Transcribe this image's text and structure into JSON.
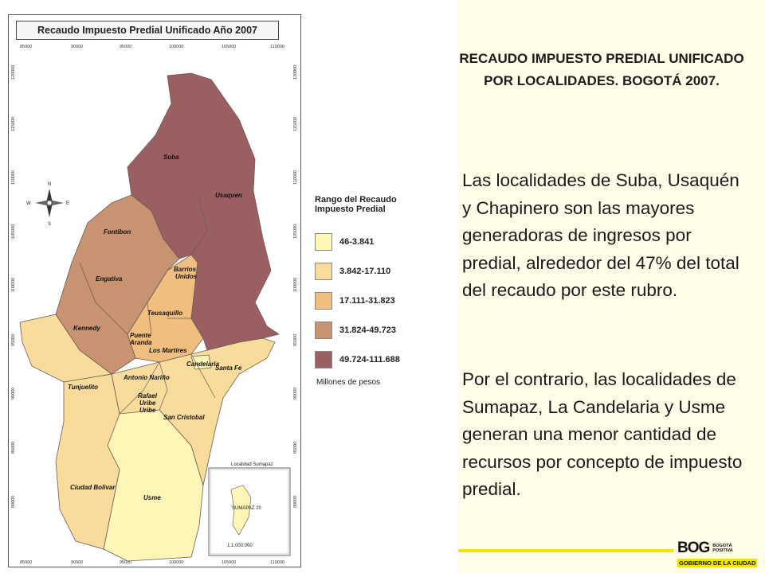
{
  "map": {
    "title": "Recaudo Impuesto Predial Unificado Año 2007",
    "x_ticks": [
      "85000",
      "90000",
      "95000",
      "100000",
      "105000",
      "110000"
    ],
    "y_ticks": [
      "120000",
      "115000",
      "110000",
      "105000",
      "100000",
      "95000",
      "90000",
      "85000",
      "80000"
    ],
    "localities": [
      {
        "name": "Suba",
        "class": 5
      },
      {
        "name": "Usaquen",
        "class": 5
      },
      {
        "name": "Chapinero",
        "class": 5
      },
      {
        "name": "Fontibon",
        "class": 4
      },
      {
        "name": "Engativa",
        "class": 4
      },
      {
        "name": "Kennedy",
        "class": 4
      },
      {
        "name": "Barrios Unidos",
        "class": 3
      },
      {
        "name": "Teusaquillo",
        "class": 3
      },
      {
        "name": "Puente Aranda",
        "class": 3
      },
      {
        "name": "Los Martires",
        "class": 2
      },
      {
        "name": "Candelaria",
        "class": 1
      },
      {
        "name": "Santa Fe",
        "class": 2
      },
      {
        "name": "Antonio Nariño",
        "class": 2
      },
      {
        "name": "Tunjuelito",
        "class": 2
      },
      {
        "name": "Rafael Uribe Uribe",
        "class": 2
      },
      {
        "name": "San Cristobal",
        "class": 2
      },
      {
        "name": "Ciudad Bolivar",
        "class": 2
      },
      {
        "name": "Usme",
        "class": 1
      }
    ],
    "inset_title": "Localidad Sumapaz",
    "inset_label": "SUMAPAZ 20",
    "scale": "1:1.000.000",
    "compass": [
      "N",
      "S",
      "E",
      "W"
    ],
    "colors": {
      "1": "#fdf6b6",
      "2": "#f9dc9c",
      "3": "#f0be7f",
      "4": "#c89370",
      "5": "#9a5f61"
    }
  },
  "legend": {
    "title": "Rango del Recaudo Impuesto Predial",
    "items": [
      {
        "label": "46-3.841",
        "color": "#fdf6b6"
      },
      {
        "label": "3.842-17.110",
        "color": "#f9dc9c"
      },
      {
        "label": "17.111-31.823",
        "color": "#f0be7f"
      },
      {
        "label": "31.824-49.723",
        "color": "#c89370"
      },
      {
        "label": "49.724-111.688",
        "color": "#9a5f61"
      }
    ],
    "unit": "Millones de pesos"
  },
  "heading": "RECAUDO IMPUESTO PREDIAL UNIFICADO POR LOCALIDADES. BOGOTÁ 2007.",
  "paragraphs": [
    "Las localidades de Suba, Usaquén y Chapinero son las mayores generadoras de ingresos por predial, alrededor del 47% del total del recaudo por este rubro.",
    "Por el contrario, las localidades de Sumapaz, La Candelaria y Usme generan una menor cantidad de recursos por concepto de impuesto predial."
  ],
  "logo": {
    "mark": "BOG",
    "tagline": "BOGOTÁ POSITIVA",
    "subtitle": "GOBIERNO DE LA CIUDAD"
  }
}
